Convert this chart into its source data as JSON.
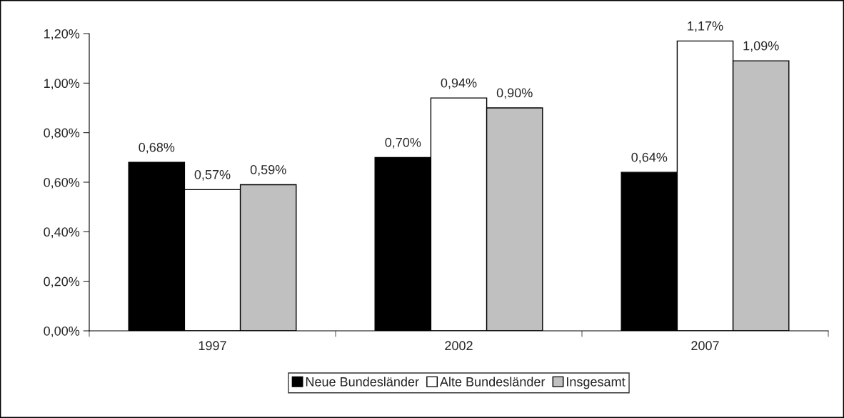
{
  "chart_data": {
    "type": "bar",
    "categories": [
      "1997",
      "2002",
      "2007"
    ],
    "series": [
      {
        "name": "Neue Bundesländer",
        "color": "#000000",
        "values": [
          0.68,
          0.7,
          0.64
        ],
        "value_labels": [
          "0,68%",
          "0,70%",
          "0,64%"
        ]
      },
      {
        "name": "Alte Bundesländer",
        "color": "#ffffff",
        "values": [
          0.57,
          0.94,
          1.17
        ],
        "value_labels": [
          "0,57%",
          "0,94%",
          "1,17%"
        ]
      },
      {
        "name": "Insgesamt",
        "color": "#c0c0c0",
        "values": [
          0.59,
          0.9,
          1.09
        ],
        "value_labels": [
          "0,59%",
          "0,90%",
          "1,09%"
        ]
      }
    ],
    "ylim": [
      0,
      1.2
    ],
    "yticks": [
      {
        "value": 0,
        "label": "0,00%"
      },
      {
        "value": 0.2,
        "label": "0,20%"
      },
      {
        "value": 0.4,
        "label": "0,40%"
      },
      {
        "value": 0.6,
        "label": "0,60%"
      },
      {
        "value": 0.8,
        "label": "0,80%"
      },
      {
        "value": 1.0,
        "label": "1,00%"
      },
      {
        "value": 1.2,
        "label": "1,20%"
      }
    ],
    "grid": false,
    "legend": "bottom"
  }
}
